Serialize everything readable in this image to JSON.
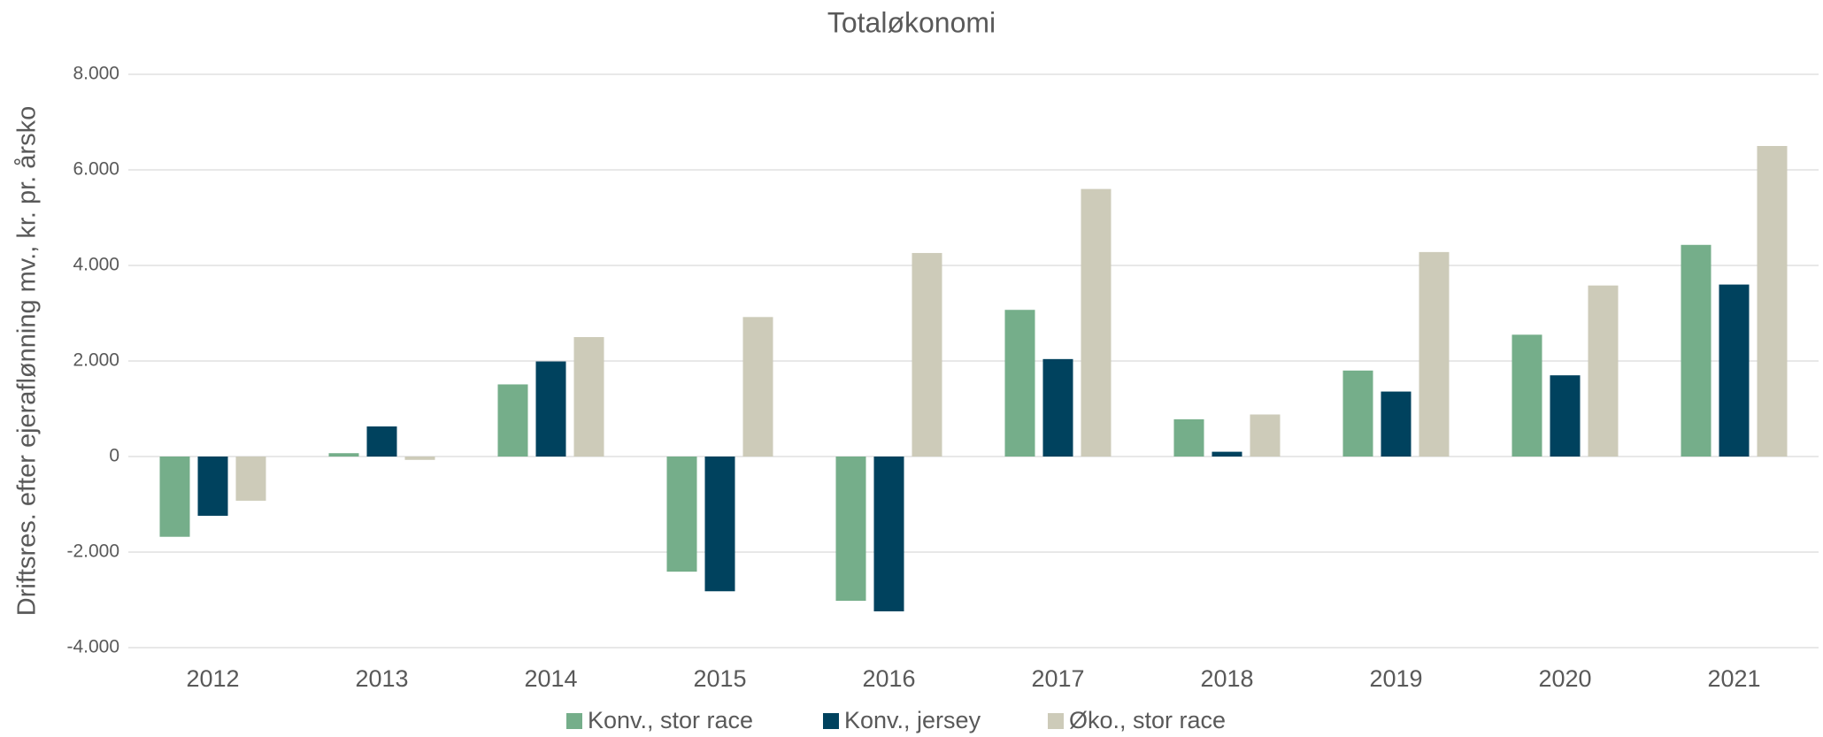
{
  "chart_data": {
    "type": "bar",
    "title": "Totaløkonomi",
    "y_label": "Driftsres. efter ejeraflønning mv., kr. pr. årsko",
    "categories": [
      "2012",
      "2013",
      "2014",
      "2015",
      "2016",
      "2017",
      "2018",
      "2019",
      "2020",
      "2021"
    ],
    "series": [
      {
        "name": "Konv., stor race",
        "color": "#75ae8a",
        "values": [
          -1680,
          70,
          1510,
          -2410,
          -3020,
          3070,
          780,
          1800,
          2550,
          4430
        ]
      },
      {
        "name": "Konv., jersey",
        "color": "#00425e",
        "values": [
          -1240,
          630,
          1990,
          -2820,
          -3240,
          2040,
          100,
          1360,
          1700,
          3600
        ]
      },
      {
        "name": "Øko., stor race",
        "color": "#cdcbb9",
        "values": [
          -925,
          -70,
          2500,
          2920,
          4260,
          5600,
          880,
          4280,
          3580,
          6500
        ]
      }
    ],
    "ylim": [
      -4000,
      8000
    ],
    "yticks": [
      {
        "value": -4000,
        "label": "-4.000"
      },
      {
        "value": -2000,
        "label": "-2.000"
      },
      0,
      {
        "value": 2000,
        "label": "2.000"
      },
      {
        "value": 4000,
        "label": "4.000"
      },
      {
        "value": 6000,
        "label": "6.000"
      },
      {
        "value": 8000,
        "label": "8.000"
      }
    ],
    "grid": true,
    "legend": "bottom"
  }
}
